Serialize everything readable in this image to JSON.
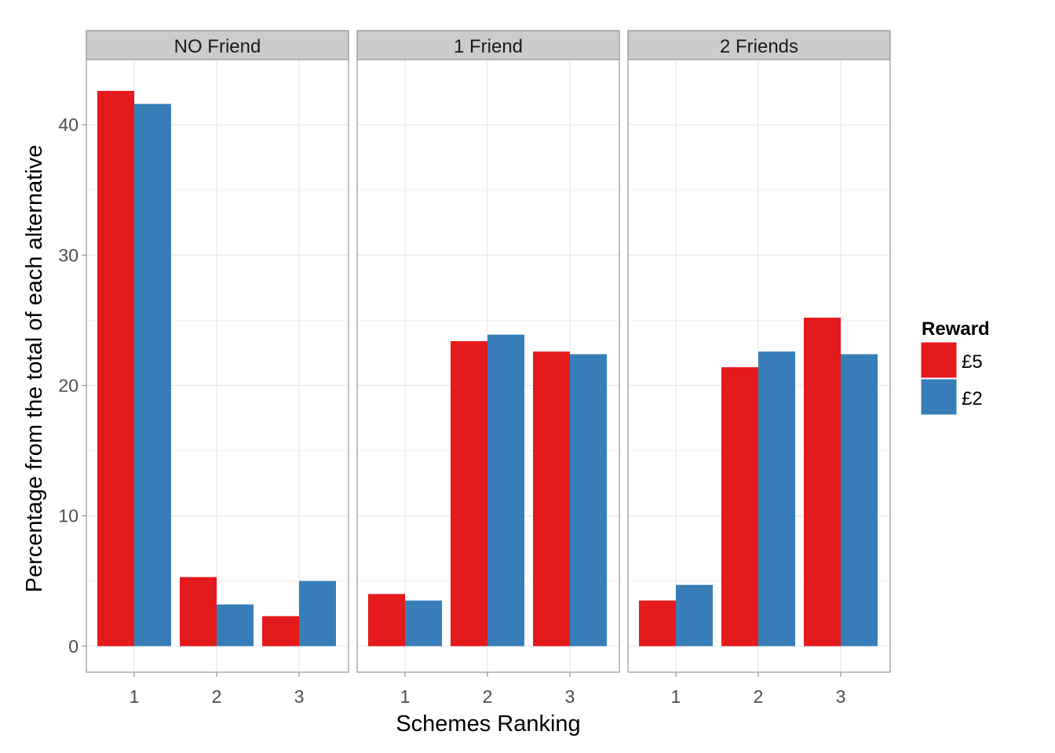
{
  "chart_data": {
    "type": "bar",
    "facets": [
      "NO Friend",
      "1 Friend",
      "2 Friends"
    ],
    "categories": [
      "1",
      "2",
      "3"
    ],
    "series": [
      {
        "name": "£5",
        "color": "#e41a1c",
        "values": [
          [
            42.6,
            5.3,
            2.3
          ],
          [
            4.0,
            23.4,
            22.6
          ],
          [
            3.5,
            21.4,
            25.2
          ]
        ]
      },
      {
        "name": "£2",
        "color": "#377eb8",
        "values": [
          [
            41.6,
            3.2,
            5.0
          ],
          [
            3.5,
            23.9,
            22.4
          ],
          [
            4.7,
            22.6,
            22.4
          ]
        ]
      }
    ],
    "xlabel": "Schemes Ranking",
    "ylabel": "Percentage from the total of each alternative",
    "ylim": [
      -2,
      45
    ],
    "yticks": [
      0,
      10,
      20,
      30,
      40
    ],
    "legend_title": "Reward",
    "legend_position": "right",
    "grid": true
  }
}
